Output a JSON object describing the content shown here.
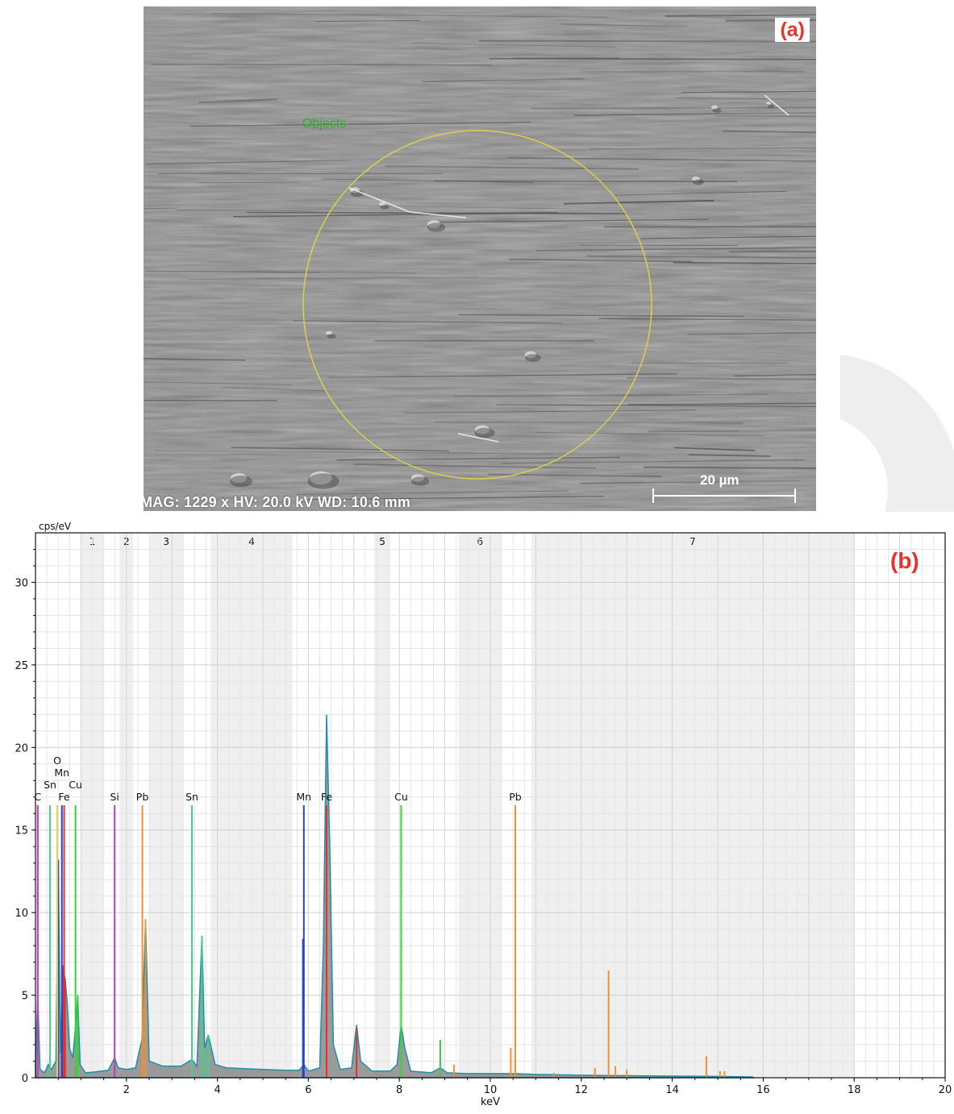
{
  "panel_a": {
    "label": "(a)",
    "objects_label": "Objects",
    "info": "MAG: 1229 x  HV: 20.0 kV  WD: 10.6 mm",
    "scale_bar": "20 µm"
  },
  "panel_b": {
    "label": "(b)"
  },
  "chart_data": {
    "type": "line",
    "title": "",
    "xlabel": "keV",
    "ylabel": "cps/eV",
    "xlim": [
      0,
      20
    ],
    "ylim": [
      0,
      33
    ],
    "x_ticks": [
      2,
      4,
      6,
      8,
      10,
      12,
      14,
      16,
      18,
      20
    ],
    "y_ticks": [
      0,
      5,
      10,
      15,
      20,
      25,
      30
    ],
    "grid": true,
    "regions": [
      {
        "label": "1",
        "x0": 1.0,
        "x1": 1.5
      },
      {
        "label": "2",
        "x0": 1.85,
        "x1": 2.15
      },
      {
        "label": "3",
        "x0": 2.5,
        "x1": 3.25
      },
      {
        "label": "4",
        "x0": 3.85,
        "x1": 5.65
      },
      {
        "label": "5",
        "x0": 7.45,
        "x1": 7.8
      },
      {
        "label": "6",
        "x0": 9.3,
        "x1": 10.25
      },
      {
        "label": "7",
        "x0": 10.9,
        "x1": 18.0
      }
    ],
    "element_markers": [
      {
        "label": "C",
        "x": 0.05,
        "level": 1,
        "color": "#c03fc0"
      },
      {
        "label": "Sn",
        "x": 0.32,
        "level": 2,
        "color": "#44d08a"
      },
      {
        "label": "O",
        "x": 0.48,
        "level": 4,
        "color": "#e0d050"
      },
      {
        "label": "Mn",
        "x": 0.58,
        "level": 3,
        "color": "#2a3ed0"
      },
      {
        "label": "Fe",
        "x": 0.63,
        "level": 1,
        "color": "#e03030"
      },
      {
        "label": "Cu",
        "x": 0.88,
        "level": 2,
        "color": "#3ad03a"
      },
      {
        "label": "Si",
        "x": 1.74,
        "level": 1,
        "color": "#c03fc0"
      },
      {
        "label": "Pb",
        "x": 2.35,
        "level": 1,
        "color": "#f09030"
      },
      {
        "label": "Sn",
        "x": 3.44,
        "level": 1,
        "color": "#44d08a"
      },
      {
        "label": "Mn",
        "x": 5.9,
        "level": 1,
        "color": "#2a3ed0"
      },
      {
        "label": "Fe",
        "x": 6.4,
        "level": 1,
        "color": "#e03030"
      },
      {
        "label": "Cu",
        "x": 8.04,
        "level": 1,
        "color": "#3ad03a"
      },
      {
        "label": "Pb",
        "x": 10.55,
        "level": 1,
        "color": "#f09030"
      }
    ],
    "element_marker_height": 16.5,
    "spectrum": [
      {
        "x": 0.0,
        "y": 0.9
      },
      {
        "x": 0.05,
        "y": 5.0
      },
      {
        "x": 0.1,
        "y": 0.5
      },
      {
        "x": 0.2,
        "y": 0.3
      },
      {
        "x": 0.28,
        "y": 0.8
      },
      {
        "x": 0.35,
        "y": 0.5
      },
      {
        "x": 0.45,
        "y": 1.0
      },
      {
        "x": 0.5,
        "y": 13.2
      },
      {
        "x": 0.55,
        "y": 1.5
      },
      {
        "x": 0.6,
        "y": 6.8
      },
      {
        "x": 0.65,
        "y": 6.0
      },
      {
        "x": 0.7,
        "y": 4.5
      },
      {
        "x": 0.75,
        "y": 1.8
      },
      {
        "x": 0.82,
        "y": 1.2
      },
      {
        "x": 0.88,
        "y": 3.1
      },
      {
        "x": 0.93,
        "y": 5.0
      },
      {
        "x": 0.98,
        "y": 0.8
      },
      {
        "x": 1.1,
        "y": 0.3
      },
      {
        "x": 1.3,
        "y": 0.35
      },
      {
        "x": 1.6,
        "y": 0.45
      },
      {
        "x": 1.74,
        "y": 1.2
      },
      {
        "x": 1.82,
        "y": 0.6
      },
      {
        "x": 2.0,
        "y": 0.5
      },
      {
        "x": 2.2,
        "y": 0.6
      },
      {
        "x": 2.34,
        "y": 2.3
      },
      {
        "x": 2.42,
        "y": 9.6
      },
      {
        "x": 2.5,
        "y": 1.0
      },
      {
        "x": 2.8,
        "y": 0.7
      },
      {
        "x": 3.2,
        "y": 0.7
      },
      {
        "x": 3.44,
        "y": 1.1
      },
      {
        "x": 3.55,
        "y": 0.7
      },
      {
        "x": 3.66,
        "y": 8.6
      },
      {
        "x": 3.72,
        "y": 1.8
      },
      {
        "x": 3.8,
        "y": 2.6
      },
      {
        "x": 3.95,
        "y": 0.8
      },
      {
        "x": 4.2,
        "y": 0.6
      },
      {
        "x": 4.6,
        "y": 0.55
      },
      {
        "x": 5.0,
        "y": 0.5
      },
      {
        "x": 5.5,
        "y": 0.45
      },
      {
        "x": 5.8,
        "y": 0.45
      },
      {
        "x": 5.9,
        "y": 0.8
      },
      {
        "x": 6.0,
        "y": 0.4
      },
      {
        "x": 6.25,
        "y": 0.6
      },
      {
        "x": 6.33,
        "y": 8.0
      },
      {
        "x": 6.4,
        "y": 22.0
      },
      {
        "x": 6.47,
        "y": 14.0
      },
      {
        "x": 6.55,
        "y": 2.0
      },
      {
        "x": 6.7,
        "y": 0.5
      },
      {
        "x": 6.95,
        "y": 0.6
      },
      {
        "x": 7.06,
        "y": 3.2
      },
      {
        "x": 7.15,
        "y": 1.0
      },
      {
        "x": 7.4,
        "y": 0.4
      },
      {
        "x": 7.8,
        "y": 0.4
      },
      {
        "x": 7.95,
        "y": 0.8
      },
      {
        "x": 8.04,
        "y": 3.2
      },
      {
        "x": 8.12,
        "y": 1.8
      },
      {
        "x": 8.25,
        "y": 0.4
      },
      {
        "x": 8.7,
        "y": 0.3
      },
      {
        "x": 8.9,
        "y": 0.6
      },
      {
        "x": 9.05,
        "y": 0.3
      },
      {
        "x": 9.5,
        "y": 0.25
      },
      {
        "x": 10.55,
        "y": 0.25
      },
      {
        "x": 11.0,
        "y": 0.2
      },
      {
        "x": 12.0,
        "y": 0.15
      },
      {
        "x": 13.0,
        "y": 0.12
      },
      {
        "x": 14.0,
        "y": 0.1
      },
      {
        "x": 15.0,
        "y": 0.08
      },
      {
        "x": 15.75,
        "y": 0.05
      },
      {
        "x": 15.8,
        "y": 0.0
      }
    ],
    "lines": [
      {
        "x": 0.05,
        "y": 16.5,
        "color": "#c03fc0"
      },
      {
        "x": 0.5,
        "y": 13.2,
        "color": "#2a3ed0"
      },
      {
        "x": 0.6,
        "y": 6.8,
        "color": "#e03030"
      },
      {
        "x": 0.65,
        "y": 6.0,
        "color": "#e03030"
      },
      {
        "x": 0.93,
        "y": 5.0,
        "color": "#3ad03a"
      },
      {
        "x": 1.74,
        "y": 1.3,
        "color": "#c03fc0"
      },
      {
        "x": 2.42,
        "y": 9.6,
        "color": "#f09030"
      },
      {
        "x": 2.36,
        "y": 2.2,
        "color": "#f09030"
      },
      {
        "x": 3.66,
        "y": 8.6,
        "color": "#44d08a"
      },
      {
        "x": 3.8,
        "y": 2.6,
        "color": "#44d08a"
      },
      {
        "x": 3.72,
        "y": 1.8,
        "color": "#44d08a"
      },
      {
        "x": 5.88,
        "y": 8.4,
        "color": "#2a3ed0"
      },
      {
        "x": 7.06,
        "y": 3.0,
        "color": "#e03030"
      },
      {
        "x": 8.04,
        "y": 8.4,
        "color": "#3ad03a"
      },
      {
        "x": 8.9,
        "y": 2.3,
        "color": "#3ad03a"
      },
      {
        "x": 9.2,
        "y": 0.8,
        "color": "#f09030"
      },
      {
        "x": 10.45,
        "y": 1.8,
        "color": "#f09030"
      },
      {
        "x": 12.6,
        "y": 6.5,
        "color": "#f09030"
      },
      {
        "x": 12.3,
        "y": 0.6,
        "color": "#f09030"
      },
      {
        "x": 12.75,
        "y": 0.7,
        "color": "#f09030"
      },
      {
        "x": 13.0,
        "y": 0.5,
        "color": "#f09030"
      },
      {
        "x": 14.75,
        "y": 1.3,
        "color": "#f09030"
      },
      {
        "x": 15.05,
        "y": 0.4,
        "color": "#f09030"
      },
      {
        "x": 15.15,
        "y": 0.4,
        "color": "#f09030"
      },
      {
        "x": 11.4,
        "y": 0.3,
        "color": "#f09030"
      }
    ]
  }
}
